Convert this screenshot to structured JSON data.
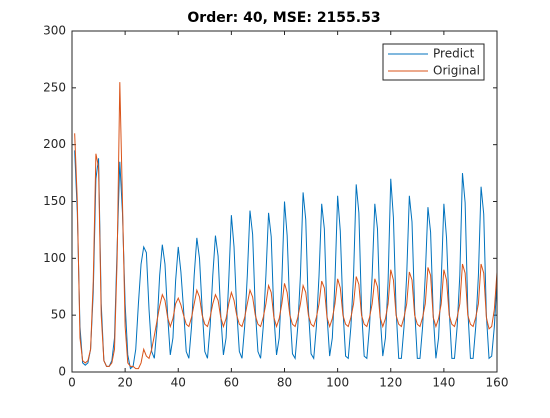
{
  "chart_data": {
    "type": "line",
    "title": "Order: 40, MSE: 2155.53",
    "x": [
      1,
      2,
      3,
      4,
      5,
      6,
      7,
      8,
      9,
      10,
      11,
      12,
      13,
      14,
      15,
      16,
      17,
      18,
      19,
      20,
      21,
      22,
      23,
      24,
      25,
      26,
      27,
      28,
      29,
      30,
      31,
      32,
      33,
      34,
      35,
      36,
      37,
      38,
      39,
      40,
      41,
      42,
      43,
      44,
      45,
      46,
      47,
      48,
      49,
      50,
      51,
      52,
      53,
      54,
      55,
      56,
      57,
      58,
      59,
      60,
      61,
      62,
      63,
      64,
      65,
      66,
      67,
      68,
      69,
      70,
      71,
      72,
      73,
      74,
      75,
      76,
      77,
      78,
      79,
      80,
      81,
      82,
      83,
      84,
      85,
      86,
      87,
      88,
      89,
      90,
      91,
      92,
      93,
      94,
      95,
      96,
      97,
      98,
      99,
      100,
      101,
      102,
      103,
      104,
      105,
      106,
      107,
      108,
      109,
      110,
      111,
      112,
      113,
      114,
      115,
      116,
      117,
      118,
      119,
      120,
      121,
      122,
      123,
      124,
      125,
      126,
      127,
      128,
      129,
      130,
      131,
      132,
      133,
      134,
      135,
      136,
      137,
      138,
      139,
      140,
      141,
      142,
      143,
      144,
      145,
      146,
      147,
      148,
      149,
      150,
      151,
      152,
      153,
      154,
      155,
      156,
      157,
      158,
      159,
      160
    ],
    "series": [
      {
        "name": "Predict",
        "color": "#0072bd",
        "values": [
          195,
          140,
          40,
          8,
          6,
          8,
          20,
          70,
          170,
          188,
          60,
          10,
          5,
          5,
          10,
          30,
          110,
          185,
          140,
          60,
          15,
          3,
          5,
          20,
          60,
          95,
          110,
          105,
          55,
          18,
          12,
          40,
          85,
          112,
          95,
          50,
          15,
          30,
          80,
          110,
          88,
          55,
          18,
          12,
          40,
          85,
          118,
          100,
          55,
          18,
          12,
          40,
          85,
          120,
          102,
          50,
          15,
          30,
          80,
          138,
          110,
          55,
          18,
          12,
          40,
          85,
          142,
          121,
          55,
          18,
          12,
          40,
          85,
          140,
          119,
          50,
          15,
          30,
          80,
          150,
          120,
          55,
          16,
          12,
          40,
          85,
          158,
          134,
          55,
          16,
          12,
          40,
          85,
          148,
          126,
          50,
          14,
          30,
          80,
          155,
          124,
          55,
          14,
          12,
          40,
          85,
          165,
          140,
          55,
          14,
          12,
          40,
          85,
          148,
          126,
          50,
          14,
          30,
          80,
          170,
          136,
          55,
          12,
          12,
          40,
          85,
          155,
          132,
          55,
          12,
          12,
          40,
          85,
          145,
          123,
          50,
          12,
          30,
          80,
          148,
          118,
          55,
          12,
          12,
          40,
          85,
          175,
          149,
          55,
          12,
          12,
          40,
          85,
          163,
          139,
          50,
          12,
          14,
          40,
          80
        ]
      },
      {
        "name": "Original",
        "color": "#d95319",
        "values": [
          210,
          150,
          30,
          10,
          8,
          10,
          20,
          80,
          192,
          180,
          50,
          10,
          5,
          5,
          8,
          20,
          100,
          255,
          150,
          40,
          8,
          5,
          5,
          3,
          3,
          8,
          20,
          14,
          12,
          20,
          32,
          45,
          58,
          68,
          63,
          48,
          40,
          47,
          60,
          65,
          59,
          50,
          42,
          40,
          48,
          60,
          72,
          66,
          50,
          42,
          40,
          48,
          60,
          68,
          63,
          48,
          40,
          47,
          60,
          70,
          63,
          50,
          42,
          40,
          48,
          60,
          72,
          66,
          50,
          42,
          40,
          48,
          60,
          76,
          70,
          48,
          40,
          47,
          60,
          78,
          70,
          50,
          42,
          40,
          48,
          60,
          76,
          70,
          50,
          42,
          40,
          48,
          60,
          80,
          74,
          48,
          40,
          47,
          60,
          82,
          74,
          50,
          42,
          40,
          48,
          60,
          84,
          77,
          50,
          42,
          40,
          48,
          60,
          82,
          75,
          48,
          40,
          47,
          60,
          90,
          81,
          50,
          42,
          40,
          48,
          60,
          88,
          81,
          50,
          42,
          40,
          48,
          60,
          92,
          85,
          48,
          40,
          47,
          60,
          90,
          81,
          50,
          42,
          40,
          48,
          60,
          95,
          87,
          50,
          42,
          40,
          48,
          60,
          95,
          87,
          48,
          38,
          40,
          55,
          88
        ]
      }
    ],
    "xlim": [
      0,
      160
    ],
    "xticks": [
      0,
      20,
      40,
      60,
      80,
      100,
      120,
      140,
      160
    ],
    "ylim": [
      0,
      300
    ],
    "yticks": [
      0,
      50,
      100,
      150,
      200,
      250,
      300
    ],
    "legend": "northeast"
  }
}
